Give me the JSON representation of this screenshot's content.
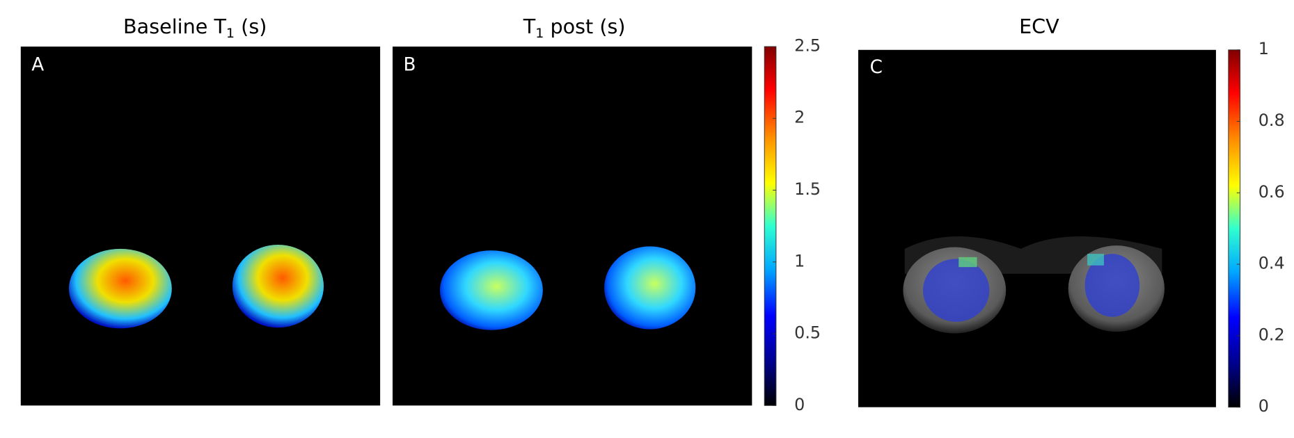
{
  "panels": [
    {
      "letter": "A",
      "title": {
        "before": "Baseline T",
        "subscript": "1",
        "after": " (s)"
      }
    },
    {
      "letter": "B",
      "title": {
        "before": "T",
        "subscript": "1",
        "after": " post (s)"
      }
    },
    {
      "letter": "C",
      "title": {
        "before": "ECV"
      }
    }
  ],
  "colorbars": [
    {
      "lim": [
        0,
        2.5
      ],
      "ticks": [
        0,
        0.5,
        1,
        1.5,
        2,
        2.5
      ]
    },
    {
      "lim": [
        0,
        1
      ],
      "ticks": [
        0,
        0.2,
        0.4,
        0.6,
        0.8,
        1
      ]
    }
  ]
}
